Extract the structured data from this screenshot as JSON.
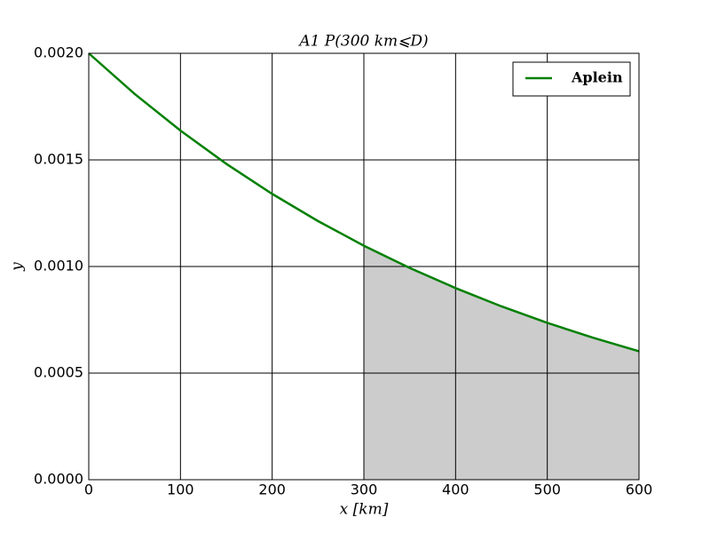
{
  "chart_data": {
    "type": "line",
    "title": "A1 P(300 km⩽D)",
    "xlabel": "x [km]",
    "ylabel": "y",
    "x": [
      0,
      50,
      100,
      150,
      200,
      250,
      300,
      350,
      400,
      450,
      500,
      550,
      600
    ],
    "series": [
      {
        "name": "Aplein",
        "color": "#008000",
        "values": [
          0.002,
          0.0018097,
          0.0016375,
          0.0014816,
          0.0013406,
          0.0012131,
          0.0010976,
          0.0009932,
          0.0008987,
          0.0008131,
          0.0007358,
          0.0006657,
          0.0006024
        ]
      }
    ],
    "fill_between": {
      "from": 300,
      "to": 600,
      "color": "#cccccc"
    },
    "xlim": [
      0,
      600
    ],
    "xticks": [
      0,
      100,
      200,
      300,
      400,
      500,
      600
    ],
    "ylim": [
      0,
      0.002
    ],
    "yticks": [
      {
        "value": 0,
        "label": "0.0000"
      },
      {
        "value": 0.0005,
        "label": "0.0005"
      },
      {
        "value": 0.001,
        "label": "0.0010"
      },
      {
        "value": 0.0015,
        "label": "0.0015"
      },
      {
        "value": 0.002,
        "label": "0.0020"
      }
    ],
    "grid": true,
    "legend": "upper right"
  }
}
